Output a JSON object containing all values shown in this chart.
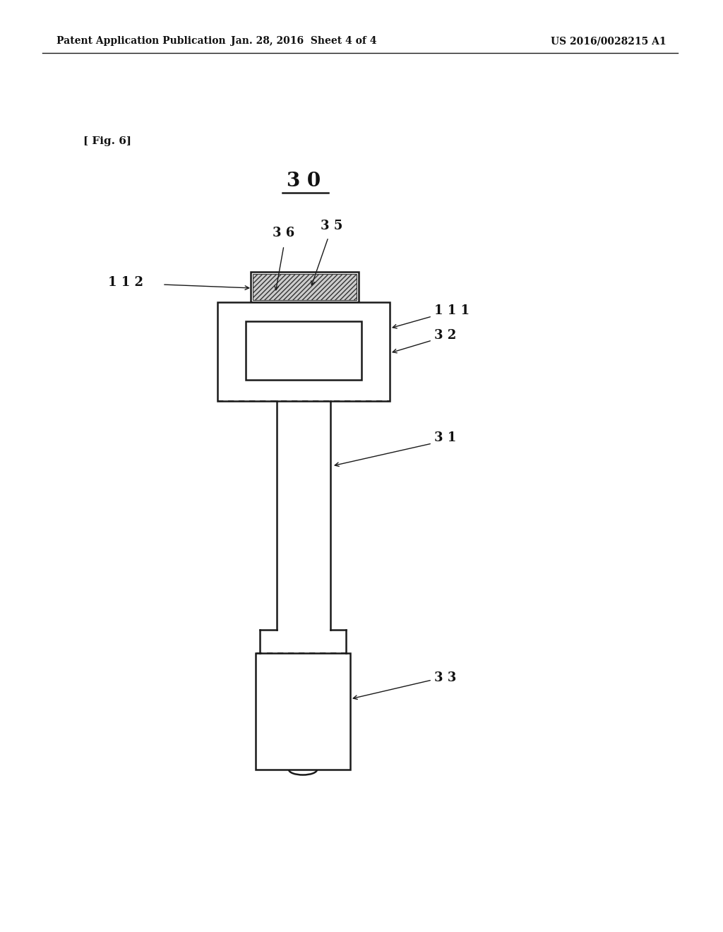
{
  "bg_color": "#ffffff",
  "line_color": "#1a1a1a",
  "header_left": "Patent Application Publication",
  "header_mid": "Jan. 28, 2016  Sheet 4 of 4",
  "header_right": "US 2016/0028215 A1",
  "fig_label": "[ Fig. 6]",
  "label_30": "3 0",
  "label_36": "3 6",
  "label_35": "3 5",
  "label_112": "1 1 2",
  "label_111": "1 1 1",
  "label_32": "3 2",
  "label_31": "3 1",
  "label_33": "3 3"
}
